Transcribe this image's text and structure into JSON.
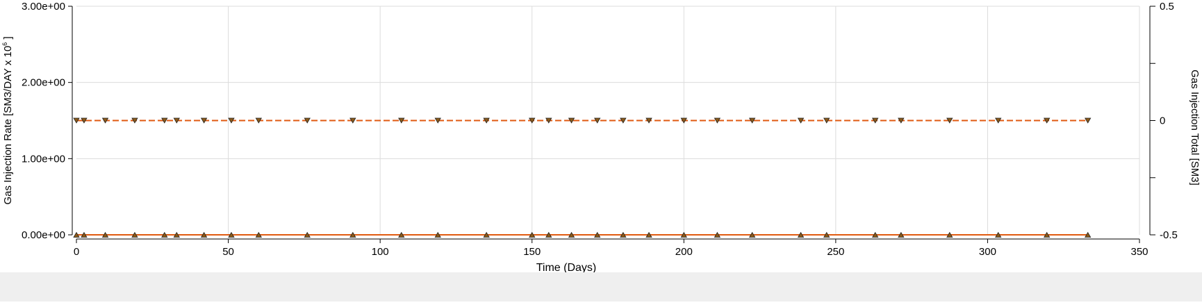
{
  "chart_data": {
    "type": "line",
    "xlabel": "Time (Days)",
    "ylabel_left_prefix": "Gas Injection Rate [SM3/DAY x 10",
    "ylabel_left_exponent": "6",
    "ylabel_left_suffix": " ]",
    "ylabel_right": "Gas Injection Total [SM3]",
    "xlim": [
      0,
      350
    ],
    "ylim_left": [
      0,
      3
    ],
    "ylim_right": [
      -0.5,
      0.5
    ],
    "x_ticks": [
      "0",
      "50",
      "100",
      "150",
      "200",
      "250",
      "300",
      "350"
    ],
    "y_left_ticks": [
      "0.00e+00",
      "1.00e+00",
      "2.00e+00",
      "3.00e+00"
    ],
    "y_right_ticks": [
      "-0.5",
      "0",
      "0.5"
    ],
    "grid": true,
    "series": [
      {
        "axis": "left",
        "style": "solid",
        "marker": "triangle-up",
        "color": "#e05a10",
        "x": [
          0,
          2.5,
          9.5,
          19.2,
          29,
          33,
          42,
          51,
          60,
          76,
          91,
          107,
          119,
          135,
          150,
          155.5,
          163,
          171.5,
          180,
          188.5,
          200,
          211,
          222.5,
          238.5,
          247,
          263,
          271.5,
          287.5,
          303.5,
          319.5,
          333
        ],
        "y": [
          0,
          0,
          0,
          0,
          0,
          0,
          0,
          0,
          0,
          0,
          0,
          0,
          0,
          0,
          0,
          0,
          0,
          0,
          0,
          0,
          0,
          0,
          0,
          0,
          0,
          0,
          0,
          0,
          0,
          0,
          0
        ]
      },
      {
        "axis": "right",
        "style": "dashed",
        "marker": "triangle-down",
        "color": "#e05a10",
        "x": [
          0,
          2.5,
          9.5,
          19.2,
          29,
          33,
          42,
          51,
          60,
          76,
          91,
          107,
          119,
          135,
          150,
          155.5,
          163,
          171.5,
          180,
          188.5,
          200,
          211,
          222.5,
          238.5,
          247,
          263,
          271.5,
          287.5,
          303.5,
          319.5,
          333
        ],
        "y": [
          0,
          0,
          0,
          0,
          0,
          0,
          0,
          0,
          0,
          0,
          0,
          0,
          0,
          0,
          0,
          0,
          0,
          0,
          0,
          0,
          0,
          0,
          0,
          0,
          0,
          0,
          0,
          0,
          0,
          0,
          0
        ]
      }
    ]
  }
}
